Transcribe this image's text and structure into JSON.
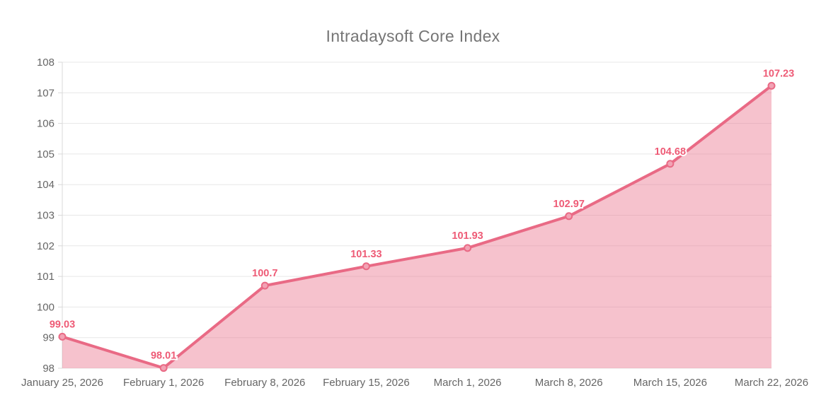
{
  "chart_data": {
    "type": "area",
    "title": "Intradaysoft Core Index",
    "categories": [
      "January 25, 2026",
      "February 1, 2026",
      "February 8, 2026",
      "February 15, 2026",
      "March 1, 2026",
      "March 8, 2026",
      "March 15, 2026",
      "March 22, 2026"
    ],
    "series": [
      {
        "name": "Intradaysoft Core Index",
        "values": [
          99.03,
          98.01,
          100.7,
          101.33,
          101.93,
          102.97,
          104.68,
          107.23
        ],
        "point_labels": [
          "99.03",
          "98.01",
          "100.7",
          "101.33",
          "101.93",
          "102.97",
          "104.68",
          "107.23"
        ]
      }
    ],
    "xlabel": "",
    "ylabel": "",
    "ylim": [
      98,
      108
    ],
    "y_tick_step": 1,
    "y_tick_labels": [
      "98",
      "99",
      "100",
      "101",
      "102",
      "103",
      "104",
      "105",
      "106",
      "107",
      "108"
    ],
    "grid": "horizontal",
    "legend_position": "none",
    "data_labels_shown": true,
    "colors": {
      "line": "#e96a85",
      "area_fill": "rgba(236,120,145,0.45)",
      "marker_fill": "#f2a2b4",
      "marker_stroke": "#e96a85",
      "data_label": "#ee5b76",
      "gridline": "#e7e7e7",
      "axis_line": "#d9d9d9",
      "tick_label": "#666666",
      "title": "#757575"
    }
  }
}
